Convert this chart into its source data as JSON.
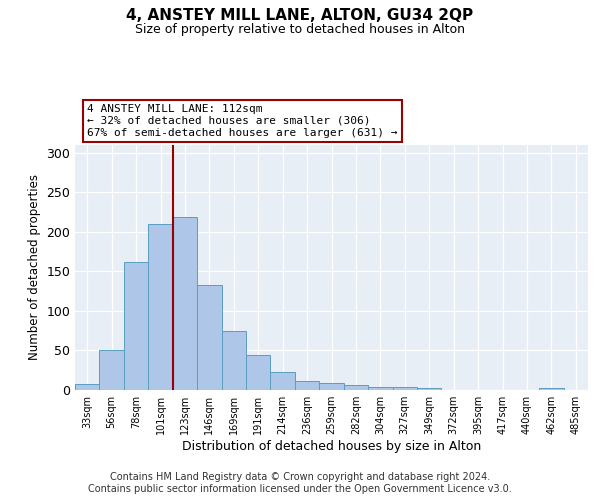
{
  "title_main": "4, ANSTEY MILL LANE, ALTON, GU34 2QP",
  "title_sub": "Size of property relative to detached houses in Alton",
  "xlabel": "Distribution of detached houses by size in Alton",
  "ylabel": "Number of detached properties",
  "categories": [
    "33sqm",
    "56sqm",
    "78sqm",
    "101sqm",
    "123sqm",
    "146sqm",
    "169sqm",
    "191sqm",
    "214sqm",
    "236sqm",
    "259sqm",
    "282sqm",
    "304sqm",
    "327sqm",
    "349sqm",
    "372sqm",
    "395sqm",
    "417sqm",
    "440sqm",
    "462sqm",
    "485sqm"
  ],
  "values": [
    7,
    50,
    162,
    210,
    219,
    133,
    75,
    44,
    23,
    11,
    9,
    6,
    4,
    4,
    3,
    0,
    0,
    0,
    0,
    3,
    0
  ],
  "bar_color": "#aec6e8",
  "bar_edge_color": "#5a9ec0",
  "vline_x": 3.5,
  "vline_color": "#990000",
  "annotation_text": "4 ANSTEY MILL LANE: 112sqm\n← 32% of detached houses are smaller (306)\n67% of semi-detached houses are larger (631) →",
  "annotation_box_color": "#ffffff",
  "annotation_box_edge": "#990000",
  "ylim": [
    0,
    310
  ],
  "yticks": [
    0,
    50,
    100,
    150,
    200,
    250,
    300
  ],
  "bg_color": "#e8eef5",
  "footer1": "Contains HM Land Registry data © Crown copyright and database right 2024.",
  "footer2": "Contains public sector information licensed under the Open Government Licence v3.0."
}
